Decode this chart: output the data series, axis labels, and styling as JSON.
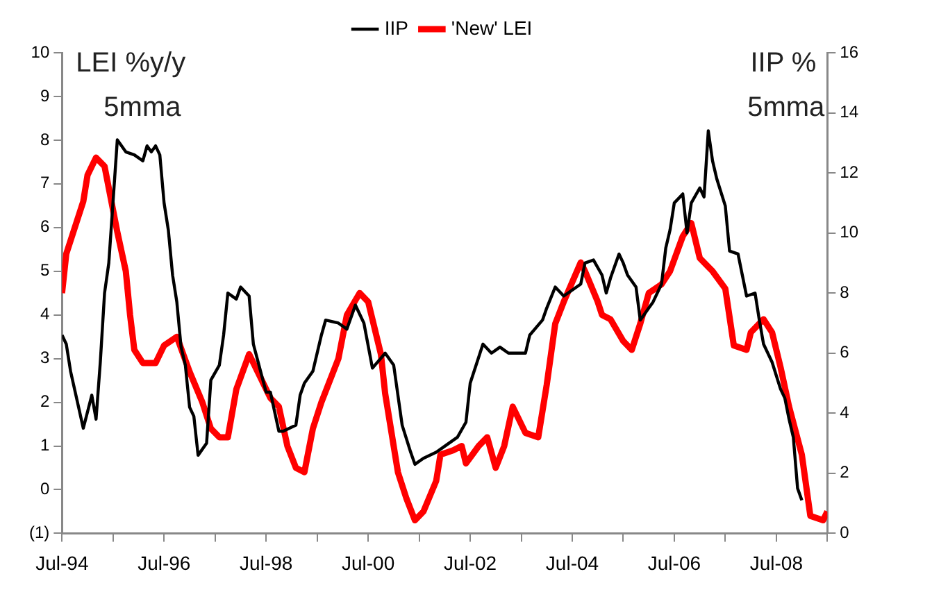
{
  "chart_data": {
    "type": "line",
    "ylabel": "LEI %y/y 5mma",
    "y2label": "IIP % 5mma",
    "legend": "top",
    "grid": false,
    "marker": "none",
    "line_style": "solid",
    "xlim": [
      "1994-07",
      "2009-07"
    ],
    "xticks": [
      {
        "value": "1994-07",
        "label": "Jul-94"
      },
      {
        "value": "1995-07",
        "label": null
      },
      {
        "value": "1996-07",
        "label": "Jul-96"
      },
      {
        "value": "1997-07",
        "label": null
      },
      {
        "value": "1998-07",
        "label": "Jul-98"
      },
      {
        "value": "1999-07",
        "label": null
      },
      {
        "value": "2000-07",
        "label": "Jul-00"
      },
      {
        "value": "2001-07",
        "label": null
      },
      {
        "value": "2002-07",
        "label": "Jul-02"
      },
      {
        "value": "2003-07",
        "label": null
      },
      {
        "value": "2004-07",
        "label": "Jul-04"
      },
      {
        "value": "2005-07",
        "label": null
      },
      {
        "value": "2006-07",
        "label": "Jul-06"
      },
      {
        "value": "2007-07",
        "label": null
      },
      {
        "value": "2008-07",
        "label": "Jul-08"
      },
      {
        "value": "2009-07",
        "label": null
      }
    ],
    "ylim": [
      -1,
      10
    ],
    "yticks": [
      {
        "value": -1,
        "label": "(1)"
      },
      0,
      1,
      2,
      3,
      4,
      5,
      6,
      7,
      8,
      9,
      10
    ],
    "y2lim": [
      0,
      16
    ],
    "y2ticks": [
      0,
      2,
      4,
      6,
      8,
      10,
      12,
      14,
      16
    ],
    "series": [
      {
        "name": "'New' LEI",
        "color": "#ff0000",
        "x": [
          "1994-07",
          "1994-08",
          "1994-10",
          "1994-12",
          "1995-01",
          "1995-03",
          "1995-05",
          "1995-06",
          "1995-08",
          "1995-10",
          "1995-11",
          "1995-12",
          "1996-02",
          "1996-05",
          "1996-07",
          "1996-10",
          "1997-01",
          "1997-04",
          "1997-06",
          "1997-08",
          "1997-10",
          "1997-12",
          "1998-03",
          "1998-05",
          "1998-08",
          "1998-10",
          "1998-12",
          "1999-02",
          "1999-04",
          "1999-06",
          "1999-08",
          "1999-10",
          "1999-12",
          "2000-02",
          "2000-05",
          "2000-07",
          "2000-10",
          "2000-11",
          "2001-02",
          "2001-04",
          "2001-06",
          "2001-08",
          "2001-11",
          "2001-12",
          "2002-03",
          "2002-05",
          "2002-06",
          "2002-09",
          "2002-11",
          "2003-01",
          "2003-03",
          "2003-05",
          "2003-08",
          "2003-11",
          "2004-01",
          "2004-03",
          "2004-05",
          "2004-09",
          "2004-10",
          "2005-01",
          "2005-02",
          "2005-04",
          "2005-07",
          "2005-09",
          "2005-11",
          "2006-01",
          "2006-04",
          "2006-06",
          "2006-09",
          "2006-11",
          "2007-01",
          "2007-04",
          "2007-07",
          "2007-09",
          "2007-12",
          "2008-01",
          "2008-04",
          "2008-06",
          "2008-08",
          "2008-10",
          "2009-01",
          "2009-03",
          "2009-06",
          "2009-07"
        ],
        "values": [
          4.5,
          5.4,
          6.0,
          6.6,
          7.2,
          7.6,
          7.4,
          6.9,
          5.9,
          5.0,
          4.0,
          3.2,
          2.9,
          2.9,
          3.3,
          3.5,
          2.7,
          2.0,
          1.4,
          1.2,
          1.2,
          2.3,
          3.1,
          2.7,
          2.1,
          1.9,
          1.0,
          0.5,
          0.4,
          1.4,
          2.0,
          2.5,
          3.0,
          4.0,
          4.5,
          4.3,
          3.1,
          2.2,
          0.4,
          -0.2,
          -0.7,
          -0.5,
          0.2,
          0.8,
          0.9,
          1.0,
          0.6,
          1.0,
          1.2,
          0.5,
          1.0,
          1.9,
          1.3,
          1.2,
          2.4,
          3.8,
          4.3,
          5.2,
          5.0,
          4.3,
          4.0,
          3.9,
          3.4,
          3.2,
          3.8,
          4.5,
          4.7,
          5.0,
          5.8,
          6.1,
          5.3,
          5.0,
          4.6,
          3.3,
          3.2,
          3.6,
          3.9,
          3.6,
          2.8,
          1.9,
          0.8,
          -0.6,
          -0.7,
          -0.5
        ]
      },
      {
        "name": "IIP",
        "color": "#000000",
        "axis": "y2",
        "x": [
          "1994-07",
          "1994-08",
          "1994-09",
          "1994-12",
          "1995-02",
          "1995-03",
          "1995-04",
          "1995-05",
          "1995-06",
          "1995-08",
          "1995-10",
          "1995-12",
          "1996-02",
          "1996-03",
          "1996-04",
          "1996-05",
          "1996-06",
          "1996-07",
          "1996-08",
          "1996-09",
          "1996-10",
          "1996-11",
          "1996-12",
          "1997-01",
          "1997-02",
          "1997-03",
          "1997-05",
          "1997-06",
          "1997-08",
          "1997-09",
          "1997-10",
          "1997-12",
          "1998-01",
          "1998-03",
          "1998-04",
          "1998-07",
          "1998-08",
          "1998-10",
          "1998-11",
          "1999-02",
          "1999-03",
          "1999-04",
          "1999-06",
          "1999-08",
          "1999-09",
          "1999-12",
          "2000-02",
          "2000-04",
          "2000-06",
          "2000-08",
          "2000-11",
          "2001-01",
          "2001-03",
          "2001-05",
          "2001-06",
          "2001-08",
          "2001-11",
          "2002-01",
          "2002-04",
          "2002-06",
          "2002-07",
          "2002-10",
          "2002-12",
          "2003-02",
          "2003-04",
          "2003-08",
          "2003-09",
          "2003-12",
          "2004-01",
          "2004-03",
          "2004-05",
          "2004-09",
          "2004-10",
          "2004-12",
          "2005-02",
          "2005-03",
          "2005-04",
          "2005-06",
          "2005-07",
          "2005-08",
          "2005-10",
          "2005-11",
          "2006-01",
          "2006-02",
          "2006-04",
          "2006-05",
          "2006-06",
          "2006-07",
          "2006-09",
          "2006-10",
          "2006-11",
          "2007-01",
          "2007-02",
          "2007-03",
          "2007-04",
          "2007-05",
          "2007-07",
          "2007-08",
          "2007-10",
          "2007-11",
          "2007-12",
          "2008-02",
          "2008-03",
          "2008-04",
          "2008-06",
          "2008-08",
          "2008-09",
          "2008-10",
          "2008-11",
          "2008-12",
          "2009-01"
        ],
        "values": [
          6.6,
          6.3,
          5.4,
          3.5,
          4.6,
          3.8,
          5.7,
          8.0,
          9.0,
          13.1,
          12.7,
          12.6,
          12.4,
          12.9,
          12.7,
          12.9,
          12.6,
          11.0,
          10.1,
          8.6,
          7.7,
          6.2,
          5.6,
          4.2,
          3.9,
          2.6,
          3.0,
          5.1,
          5.6,
          6.6,
          8.0,
          7.8,
          8.2,
          7.9,
          6.3,
          4.7,
          4.7,
          3.4,
          3.4,
          3.6,
          4.6,
          5.0,
          5.4,
          6.6,
          7.1,
          7.0,
          6.8,
          7.6,
          7.0,
          5.5,
          6.0,
          5.6,
          3.6,
          2.7,
          2.3,
          2.5,
          2.7,
          2.9,
          3.2,
          3.7,
          5.0,
          6.3,
          6.0,
          6.2,
          6.0,
          6.0,
          6.6,
          7.1,
          7.5,
          8.2,
          7.9,
          8.3,
          9.0,
          9.1,
          8.6,
          8.0,
          8.5,
          9.3,
          9.0,
          8.6,
          8.2,
          7.1,
          7.5,
          7.7,
          8.3,
          9.5,
          10.1,
          11.0,
          11.3,
          10.0,
          11.0,
          11.5,
          11.2,
          13.4,
          12.4,
          11.8,
          10.9,
          9.4,
          9.3,
          8.6,
          7.9,
          8.0,
          7.1,
          6.3,
          5.7,
          4.8,
          4.5,
          3.8,
          3.2,
          1.5,
          1.1
        ]
      }
    ]
  }
}
